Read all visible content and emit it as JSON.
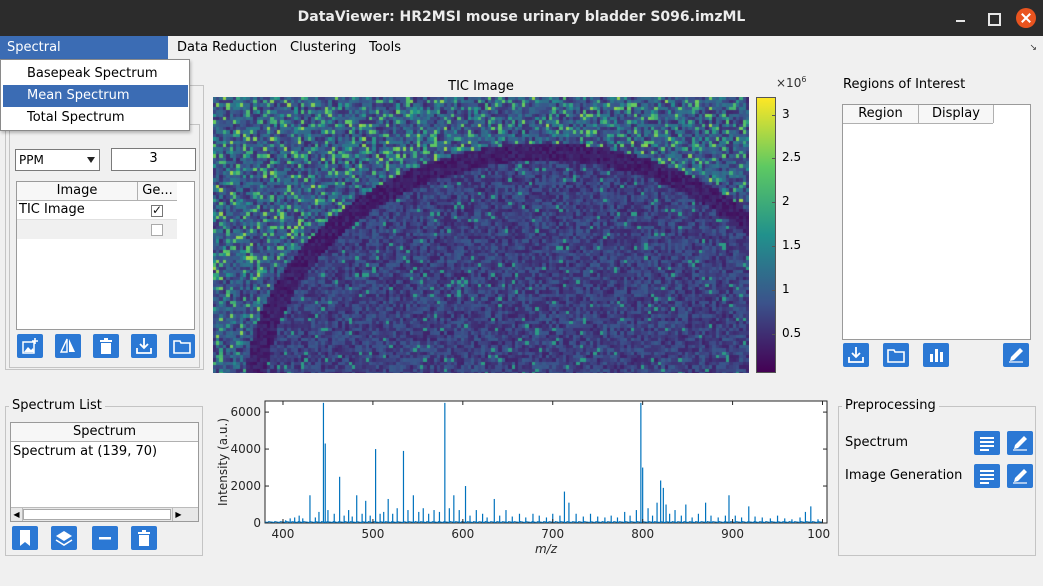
{
  "window": {
    "title": "DataViewer: HR2MSI mouse urinary bladder S096.imzML"
  },
  "menubar": {
    "items": [
      "Spectral Representation",
      "Data Reduction",
      "Clustering",
      "Tools"
    ],
    "active_index": 0,
    "corner_glyph": "↘"
  },
  "dropdown": {
    "items": [
      "Basepeak Spectrum",
      "Mean Spectrum",
      "Total Spectrum"
    ],
    "selected_index": 1
  },
  "left_panel": {
    "tolerance_unit": "PPM",
    "tolerance_value": "3",
    "table": {
      "headers": [
        "Image",
        "Ge..."
      ],
      "rows": [
        {
          "name": "TIC Image",
          "checked": true
        },
        {
          "name": "",
          "checked": false
        }
      ]
    },
    "buttons": [
      "add-image-icon",
      "split-icon",
      "trash-icon",
      "download-icon",
      "folder-icon"
    ]
  },
  "tic_image": {
    "title": "TIC Image",
    "colorbar_exponent": "×10",
    "colorbar_exponent_power": "6",
    "colorbar_ticks": [
      "3",
      "2.5",
      "2",
      "1.5",
      "1",
      "0.5"
    ],
    "colorbar_tick_values": [
      3,
      2.5,
      2,
      1.5,
      1,
      0.5
    ],
    "colorbar_range": [
      0.05,
      3.2
    ],
    "colormap": [
      "#440154",
      "#3b528b",
      "#21918c",
      "#5ec962",
      "#fde725"
    ]
  },
  "regions": {
    "title": "Regions of Interest",
    "headers": [
      "Region",
      "Display"
    ],
    "buttons": [
      "download-icon",
      "folder-icon",
      "bar-chart-icon",
      "pencil-icon"
    ]
  },
  "spectrum_list": {
    "title": "Spectrum List",
    "header": "Spectrum",
    "items": [
      "Spectrum at (139, 70)"
    ],
    "buttons": [
      "bookmark-icon",
      "layers-icon",
      "minus-icon",
      "trash-icon"
    ]
  },
  "preprocessing": {
    "title": "Preprocessing",
    "rows": [
      {
        "label": "Spectrum"
      },
      {
        "label": "Image Generation"
      }
    ]
  },
  "chart_data": {
    "type": "line",
    "title": "",
    "xlabel": "m/z",
    "ylabel": "Intensity (a.u.)",
    "xlim": [
      380,
      1005
    ],
    "ylim": [
      0,
      6600
    ],
    "x_ticks": [
      400,
      500,
      600,
      700,
      800,
      900,
      1000
    ],
    "y_ticks": [
      0,
      2000,
      4000,
      6000
    ],
    "line_color": "#0072bd",
    "peaks": [
      {
        "x": 403,
        "y": 150
      },
      {
        "x": 408,
        "y": 250
      },
      {
        "x": 413,
        "y": 300
      },
      {
        "x": 418,
        "y": 400
      },
      {
        "x": 422,
        "y": 250
      },
      {
        "x": 430,
        "y": 1500
      },
      {
        "x": 436,
        "y": 300
      },
      {
        "x": 440,
        "y": 600
      },
      {
        "x": 445,
        "y": 6500
      },
      {
        "x": 447,
        "y": 4300
      },
      {
        "x": 450,
        "y": 700
      },
      {
        "x": 457,
        "y": 500
      },
      {
        "x": 463,
        "y": 2500
      },
      {
        "x": 468,
        "y": 400
      },
      {
        "x": 473,
        "y": 700
      },
      {
        "x": 477,
        "y": 350
      },
      {
        "x": 482,
        "y": 1500
      },
      {
        "x": 488,
        "y": 500
      },
      {
        "x": 492,
        "y": 1200
      },
      {
        "x": 497,
        "y": 400
      },
      {
        "x": 503,
        "y": 4000
      },
      {
        "x": 508,
        "y": 500
      },
      {
        "x": 512,
        "y": 600
      },
      {
        "x": 517,
        "y": 1300
      },
      {
        "x": 522,
        "y": 500
      },
      {
        "x": 527,
        "y": 800
      },
      {
        "x": 534,
        "y": 3900
      },
      {
        "x": 539,
        "y": 700
      },
      {
        "x": 545,
        "y": 1500
      },
      {
        "x": 551,
        "y": 600
      },
      {
        "x": 556,
        "y": 800
      },
      {
        "x": 562,
        "y": 500
      },
      {
        "x": 568,
        "y": 700
      },
      {
        "x": 574,
        "y": 600
      },
      {
        "x": 580,
        "y": 6500
      },
      {
        "x": 585,
        "y": 800
      },
      {
        "x": 590,
        "y": 1500
      },
      {
        "x": 596,
        "y": 700
      },
      {
        "x": 603,
        "y": 2000
      },
      {
        "x": 608,
        "y": 400
      },
      {
        "x": 615,
        "y": 700
      },
      {
        "x": 622,
        "y": 500
      },
      {
        "x": 627,
        "y": 300
      },
      {
        "x": 635,
        "y": 1300
      },
      {
        "x": 641,
        "y": 400
      },
      {
        "x": 648,
        "y": 700
      },
      {
        "x": 655,
        "y": 350
      },
      {
        "x": 663,
        "y": 500
      },
      {
        "x": 670,
        "y": 300
      },
      {
        "x": 678,
        "y": 500
      },
      {
        "x": 685,
        "y": 400
      },
      {
        "x": 693,
        "y": 300
      },
      {
        "x": 700,
        "y": 500
      },
      {
        "x": 708,
        "y": 400
      },
      {
        "x": 713,
        "y": 1700
      },
      {
        "x": 718,
        "y": 1100
      },
      {
        "x": 726,
        "y": 500
      },
      {
        "x": 734,
        "y": 350
      },
      {
        "x": 742,
        "y": 500
      },
      {
        "x": 750,
        "y": 350
      },
      {
        "x": 758,
        "y": 300
      },
      {
        "x": 765,
        "y": 400
      },
      {
        "x": 772,
        "y": 300
      },
      {
        "x": 780,
        "y": 600
      },
      {
        "x": 786,
        "y": 400
      },
      {
        "x": 793,
        "y": 700
      },
      {
        "x": 798,
        "y": 6500
      },
      {
        "x": 800,
        "y": 3000
      },
      {
        "x": 806,
        "y": 800
      },
      {
        "x": 811,
        "y": 400
      },
      {
        "x": 816,
        "y": 1100
      },
      {
        "x": 820,
        "y": 2300
      },
      {
        "x": 823,
        "y": 1900
      },
      {
        "x": 826,
        "y": 1000
      },
      {
        "x": 830,
        "y": 500
      },
      {
        "x": 836,
        "y": 700
      },
      {
        "x": 843,
        "y": 400
      },
      {
        "x": 848,
        "y": 1000
      },
      {
        "x": 855,
        "y": 300
      },
      {
        "x": 862,
        "y": 500
      },
      {
        "x": 870,
        "y": 1100
      },
      {
        "x": 876,
        "y": 400
      },
      {
        "x": 884,
        "y": 300
      },
      {
        "x": 892,
        "y": 400
      },
      {
        "x": 896,
        "y": 1500
      },
      {
        "x": 903,
        "y": 400
      },
      {
        "x": 910,
        "y": 300
      },
      {
        "x": 918,
        "y": 900
      },
      {
        "x": 925,
        "y": 350
      },
      {
        "x": 933,
        "y": 300
      },
      {
        "x": 942,
        "y": 250
      },
      {
        "x": 950,
        "y": 400
      },
      {
        "x": 958,
        "y": 250
      },
      {
        "x": 966,
        "y": 200
      },
      {
        "x": 975,
        "y": 300
      },
      {
        "x": 981,
        "y": 600
      },
      {
        "x": 987,
        "y": 900
      },
      {
        "x": 995,
        "y": 200
      }
    ]
  }
}
